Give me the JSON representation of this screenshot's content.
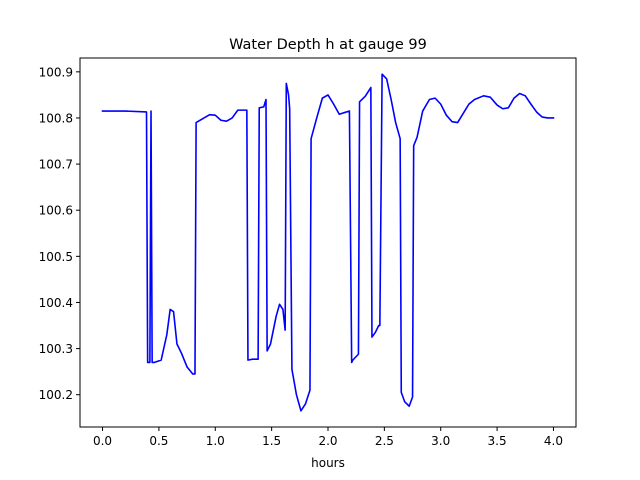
{
  "chart_data": {
    "type": "line",
    "title": "Water Depth h at gauge 99",
    "xlabel": "hours",
    "ylabel": "",
    "xlim": [
      -0.2,
      4.2
    ],
    "ylim": [
      100.13,
      100.93
    ],
    "xticks": [
      0.0,
      0.5,
      1.0,
      1.5,
      2.0,
      2.5,
      3.0,
      3.5,
      4.0
    ],
    "xtick_labels": [
      "0.0",
      "0.5",
      "1.0",
      "1.5",
      "2.0",
      "2.5",
      "3.0",
      "3.5",
      "4.0"
    ],
    "yticks": [
      100.2,
      100.3,
      100.4,
      100.5,
      100.6,
      100.7,
      100.8,
      100.9
    ],
    "ytick_labels": [
      "100.2",
      "100.3",
      "100.4",
      "100.5",
      "100.6",
      "100.7",
      "100.8",
      "100.9"
    ],
    "grid": false,
    "series": [
      {
        "color": "#0000ff",
        "x": [
          0.0,
          0.2,
          0.39,
          0.4,
          0.42,
          0.43,
          0.44,
          0.46,
          0.52,
          0.57,
          0.6,
          0.63,
          0.66,
          0.7,
          0.75,
          0.8,
          0.82,
          0.83,
          0.9,
          0.95,
          1.0,
          1.05,
          1.1,
          1.15,
          1.2,
          1.28,
          1.29,
          1.33,
          1.38,
          1.39,
          1.43,
          1.45,
          1.46,
          1.49,
          1.54,
          1.57,
          1.6,
          1.62,
          1.63,
          1.65,
          1.66,
          1.68,
          1.72,
          1.76,
          1.8,
          1.84,
          1.85,
          1.9,
          1.95,
          2.0,
          2.05,
          2.1,
          2.15,
          2.19,
          2.21,
          2.22,
          2.27,
          2.28,
          2.33,
          2.38,
          2.39,
          2.42,
          2.45,
          2.46,
          2.48,
          2.52,
          2.56,
          2.6,
          2.64,
          2.65,
          2.68,
          2.72,
          2.75,
          2.76,
          2.79,
          2.84,
          2.9,
          2.95,
          3.0,
          3.05,
          3.1,
          3.15,
          3.2,
          3.25,
          3.3,
          3.38,
          3.44,
          3.5,
          3.55,
          3.6,
          3.65,
          3.7,
          3.75,
          3.8,
          3.85,
          3.9,
          3.95,
          4.0
        ],
        "values": [
          100.815,
          100.815,
          100.813,
          100.27,
          100.27,
          100.815,
          100.27,
          100.27,
          100.275,
          100.33,
          100.385,
          100.38,
          100.31,
          100.29,
          100.26,
          100.245,
          100.245,
          100.79,
          100.8,
          100.807,
          100.806,
          100.795,
          100.793,
          100.8,
          100.817,
          100.817,
          100.275,
          100.277,
          100.277,
          100.822,
          100.824,
          100.84,
          100.295,
          100.31,
          100.37,
          100.396,
          100.385,
          100.34,
          100.875,
          100.85,
          100.82,
          100.255,
          100.2,
          100.165,
          100.18,
          100.21,
          100.755,
          100.8,
          100.843,
          100.85,
          100.83,
          100.808,
          100.812,
          100.815,
          100.27,
          100.275,
          100.288,
          100.835,
          100.847,
          100.866,
          100.325,
          100.335,
          100.35,
          100.35,
          100.895,
          100.885,
          100.84,
          100.79,
          100.755,
          100.205,
          100.185,
          100.175,
          100.195,
          100.74,
          100.758,
          100.815,
          100.84,
          100.843,
          100.83,
          100.806,
          100.792,
          100.79,
          100.81,
          100.83,
          100.84,
          100.848,
          100.845,
          100.828,
          100.82,
          100.822,
          100.843,
          100.853,
          100.848,
          100.83,
          100.813,
          100.802,
          100.8,
          100.8
        ]
      }
    ]
  }
}
